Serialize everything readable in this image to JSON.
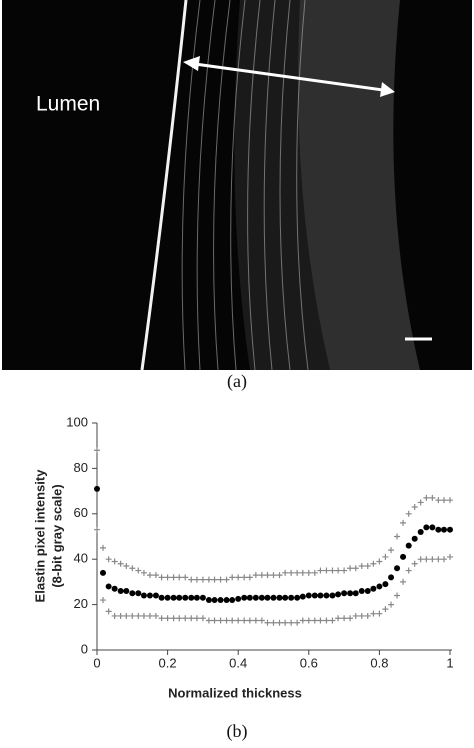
{
  "panel_a": {
    "label": "Lumen",
    "caption": "(a)"
  },
  "panel_b": {
    "caption": "(b)"
  },
  "chart_data": {
    "type": "scatter",
    "xlabel": "Normalized thickness",
    "ylabel": [
      "Elastin pixel intensity",
      "(8-bit gray scale)"
    ],
    "xlim": [
      0,
      1
    ],
    "xticks": [
      0,
      0.2,
      0.4,
      0.6,
      0.8,
      1
    ],
    "ylim": [
      0,
      100
    ],
    "yticks": [
      0,
      20,
      40,
      60,
      80,
      100
    ],
    "grid": false,
    "x": [
      0,
      0.017,
      0.033,
      0.05,
      0.067,
      0.083,
      0.1,
      0.117,
      0.133,
      0.15,
      0.167,
      0.183,
      0.2,
      0.217,
      0.233,
      0.25,
      0.267,
      0.283,
      0.3,
      0.317,
      0.333,
      0.35,
      0.367,
      0.383,
      0.4,
      0.417,
      0.433,
      0.45,
      0.467,
      0.483,
      0.5,
      0.517,
      0.533,
      0.55,
      0.567,
      0.583,
      0.6,
      0.617,
      0.633,
      0.65,
      0.667,
      0.683,
      0.7,
      0.717,
      0.733,
      0.75,
      0.767,
      0.783,
      0.8,
      0.817,
      0.833,
      0.85,
      0.867,
      0.883,
      0.9,
      0.917,
      0.933,
      0.95,
      0.967,
      0.983,
      1
    ],
    "series": [
      {
        "color": "#000000",
        "marker": "dot",
        "values": [
          71,
          34,
          28,
          27,
          26,
          26,
          25,
          25,
          24,
          24,
          24,
          23,
          23,
          23,
          23,
          23,
          23,
          23,
          23,
          22,
          22,
          22,
          22,
          22,
          22.5,
          23,
          23,
          23,
          23,
          23,
          23,
          23,
          23,
          23,
          23,
          23.5,
          24,
          24,
          24,
          24,
          24,
          24.5,
          25,
          25,
          25,
          26,
          26,
          27,
          28,
          29,
          32,
          36,
          41,
          46,
          49,
          52,
          54,
          54,
          53,
          53,
          53
        ]
      },
      {
        "color": "#888888",
        "marker": "plus",
        "values": [
          88,
          45,
          40,
          39,
          38,
          37,
          36,
          35,
          34,
          33,
          33,
          32,
          32,
          32,
          32,
          32,
          31,
          31,
          31,
          31,
          31,
          31,
          31,
          32,
          32,
          32,
          32,
          33,
          33,
          33,
          33,
          33,
          34,
          34,
          34,
          34,
          34,
          34,
          35,
          35,
          35,
          35,
          35,
          36,
          36,
          37,
          37,
          38,
          39,
          41,
          44,
          50,
          56,
          60,
          63,
          65,
          67,
          67,
          66,
          66,
          66
        ]
      },
      {
        "color": "#888888",
        "marker": "plus",
        "values": [
          53,
          22,
          17,
          15,
          15,
          15,
          15,
          15,
          15,
          15,
          15,
          14,
          14,
          14,
          14,
          14,
          14,
          14,
          14,
          13,
          13,
          13,
          13,
          13,
          13,
          13,
          13,
          13,
          13,
          12,
          12,
          12,
          12,
          12,
          12,
          13,
          13,
          13,
          13,
          13,
          13,
          14,
          14,
          14,
          15,
          15,
          15,
          16,
          16,
          18,
          20,
          24,
          30,
          35,
          38,
          40,
          40,
          40,
          40,
          40,
          41
        ]
      }
    ]
  }
}
